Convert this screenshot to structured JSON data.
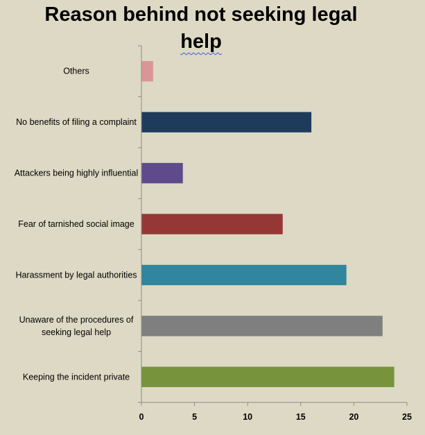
{
  "chart_data": {
    "type": "bar",
    "orientation": "horizontal",
    "title_line1": "Reason behind not seeking legal",
    "title_line2": "help",
    "categories": [
      [
        "Others"
      ],
      [
        "No benefits of filing a complaint"
      ],
      [
        "Attackers being highly influential"
      ],
      [
        "Fear of tarnished social image"
      ],
      [
        "Harassment by legal authorities"
      ],
      [
        "Unaware of the procedures of",
        "seeking legal help"
      ],
      [
        "Keeping the incident private"
      ]
    ],
    "values": [
      1.1,
      16.0,
      3.9,
      13.3,
      19.3,
      22.7,
      23.8
    ],
    "colors": [
      "#d99694",
      "#1f3b5c",
      "#5f4b8b",
      "#953735",
      "#31859c",
      "#7f7f7f",
      "#77933c"
    ],
    "xlim": [
      0,
      25
    ],
    "xticks": [
      0,
      5,
      10,
      15,
      20,
      25
    ],
    "xlabel": "",
    "ylabel": "",
    "grid": false,
    "legend": "none"
  }
}
